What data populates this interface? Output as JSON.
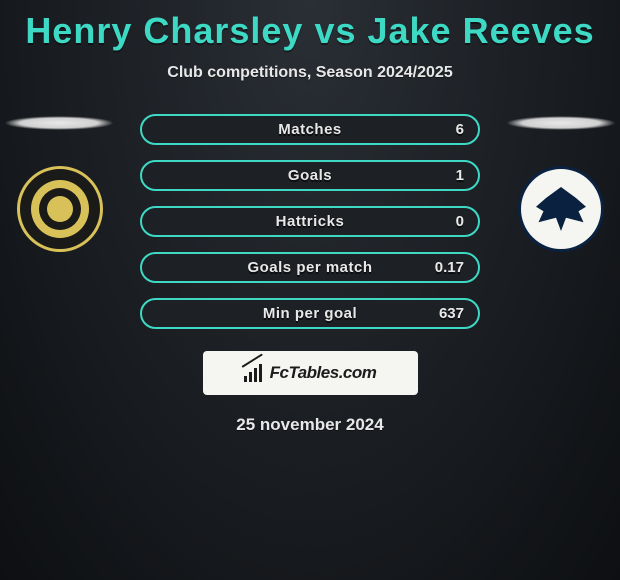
{
  "title": "Henry Charsley vs Jake Reeves",
  "subtitle": "Club competitions, Season 2024/2025",
  "colors": {
    "accent": "#3dd9c4",
    "text": "#e8e8e8",
    "bg_inner": "#2a2f35",
    "bg_outer": "#0d0f12",
    "brand_bg": "#f5f5f2",
    "brand_fg": "#1c1c1c"
  },
  "stats": [
    {
      "label": "Matches",
      "valRight": "6"
    },
    {
      "label": "Goals",
      "valRight": "1"
    },
    {
      "label": "Hattricks",
      "valRight": "0"
    },
    {
      "label": "Goals per match",
      "valRight": "0.17"
    },
    {
      "label": "Min per goal",
      "valRight": "637"
    }
  ],
  "brand": "FcTables.com",
  "date": "25 november 2024",
  "badges": {
    "left_alt": "Newport County",
    "right_alt": "AFC Wimbledon"
  }
}
